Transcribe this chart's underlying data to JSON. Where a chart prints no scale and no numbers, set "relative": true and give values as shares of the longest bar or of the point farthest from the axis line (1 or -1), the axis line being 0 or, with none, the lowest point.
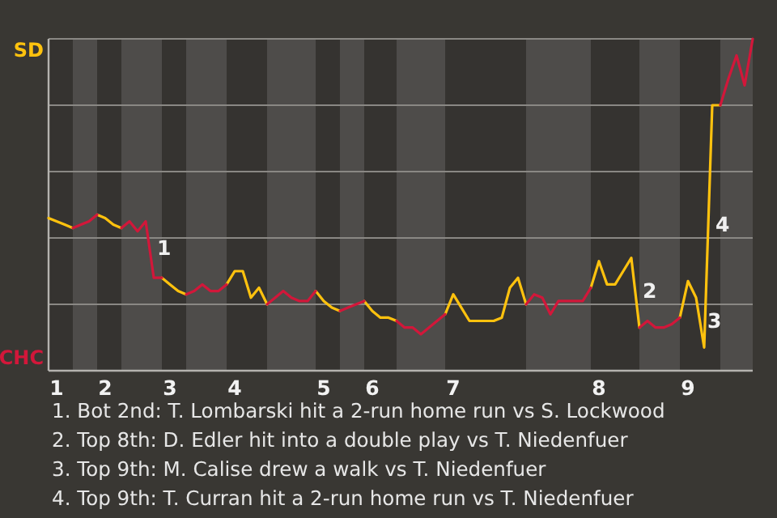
{
  "chart_data": {
    "type": "line",
    "relative": true,
    "grid": "y",
    "marker": "none",
    "line_style": "solid",
    "categories": [
      null,
      "1",
      null,
      null,
      null,
      null,
      null,
      "2",
      null,
      null,
      null,
      null,
      null,
      null,
      null,
      "3",
      null,
      null,
      null,
      null,
      null,
      null,
      null,
      "4",
      null,
      null,
      null,
      null,
      null,
      null,
      null,
      null,
      null,
      null,
      "5",
      null,
      null,
      null,
      null,
      null,
      "6",
      null,
      null,
      null,
      null,
      null,
      null,
      null,
      null,
      null,
      "7",
      null,
      null,
      null,
      null,
      null,
      null,
      null,
      null,
      null,
      null,
      null,
      null,
      null,
      null,
      null,
      null,
      null,
      "8",
      null,
      null,
      null,
      null,
      null,
      null,
      null,
      null,
      null,
      null,
      "9",
      null,
      null,
      null,
      null,
      null,
      null,
      null,
      null
    ],
    "series": [
      {
        "color": "#ffc20e",
        "values": [
          0.46,
          0.45,
          0.44,
          0.43,
          null,
          null,
          0.47,
          0.46,
          0.44,
          0.43,
          null,
          null,
          null,
          null,
          0.28,
          0.26,
          0.24,
          0.23,
          null,
          null,
          null,
          null,
          0.26,
          0.3,
          0.3,
          0.22,
          0.25,
          0.2,
          null,
          null,
          null,
          null,
          null,
          0.24,
          0.21,
          0.19,
          0.18,
          null,
          null,
          0.21,
          0.18,
          0.16,
          0.16,
          0.15,
          null,
          null,
          null,
          null,
          null,
          0.17,
          0.23,
          0.19,
          0.15,
          0.15,
          0.15,
          0.15,
          0.16,
          0.25,
          0.28,
          0.2,
          null,
          null,
          null,
          null,
          null,
          null,
          null,
          0.25,
          0.33,
          0.26,
          0.26,
          0.3,
          0.34,
          0.13,
          null,
          null,
          null,
          null,
          0.16,
          0.27,
          0.22,
          0.07,
          0.8,
          0.8,
          null,
          null,
          null,
          null
        ]
      },
      {
        "color": "#d2173a",
        "values": [
          null,
          null,
          null,
          0.43,
          0.44,
          0.45,
          0.47,
          null,
          null,
          0.43,
          0.45,
          0.42,
          0.45,
          0.28,
          0.28,
          null,
          null,
          0.23,
          0.24,
          0.26,
          0.24,
          0.24,
          0.26,
          null,
          null,
          null,
          null,
          0.2,
          0.22,
          0.24,
          0.22,
          0.21,
          0.21,
          0.24,
          null,
          null,
          0.18,
          0.19,
          0.2,
          0.21,
          null,
          null,
          null,
          0.15,
          0.13,
          0.13,
          0.11,
          0.13,
          0.15,
          0.17,
          null,
          null,
          null,
          null,
          null,
          null,
          null,
          null,
          null,
          0.2,
          0.23,
          0.22,
          0.17,
          0.21,
          0.21,
          0.21,
          0.21,
          0.25,
          null,
          null,
          null,
          null,
          null,
          0.13,
          0.15,
          0.13,
          0.13,
          0.14,
          0.16,
          null,
          null,
          null,
          null,
          0.8,
          0.88,
          0.95,
          0.86,
          1
        ]
      }
    ],
    "annotations": [
      "SD",
      "CHC",
      "1",
      "2",
      "3",
      "4",
      "1. Bot 2nd: T. Lombarski hit a 2-run home run vs S. Lockwood",
      "2. Top 8th: D. Edler hit into a double play vs T. Niedenfuer",
      "3. Top 9th: M. Calise drew a walk vs T. Niedenfuer",
      "4. Top 9th: T. Curran hit a 2-run home run vs T. Niedenfuer"
    ]
  }
}
